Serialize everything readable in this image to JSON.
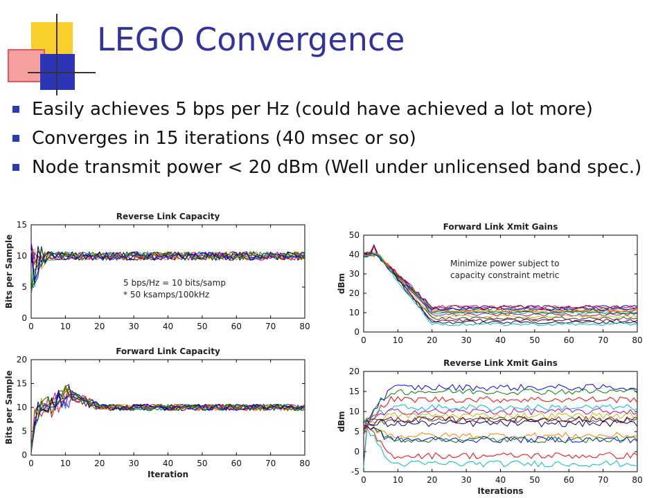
{
  "slide": {
    "title": "LEGO Convergence",
    "bullets": [
      "Easily achieves 5 bps per Hz (could have achieved a lot more)",
      "Converges in 15 iterations (40 msec or so)",
      "Node transmit power < 20 dBm (Well under unlicensed band spec.)"
    ]
  },
  "colors": {
    "title": "#33339c",
    "bullet": "#2c3bb0",
    "logo_yellow": "#f9cf2b",
    "logo_red": "#f26a6a",
    "logo_blue": "#2b35b6",
    "series": [
      "#0000ff",
      "#008000",
      "#ff0000",
      "#00bfbf",
      "#bf00bf",
      "#bfbf00",
      "#404040",
      "#7f0000",
      "#00007f",
      "#ff7f00"
    ]
  },
  "chart_data": [
    {
      "type": "line",
      "title": "Reverse Link Capacity",
      "xlabel": "",
      "ylabel": "Bits per Sample",
      "xlim": [
        0,
        80
      ],
      "ylim": [
        0,
        15
      ],
      "xticks": [
        0,
        10,
        20,
        30,
        40,
        50,
        60,
        70,
        80
      ],
      "yticks": [
        0,
        5,
        10,
        15
      ],
      "annotation": [
        "5 bps/Hz = 10 bits/samp",
        "* 50 ksamps/100kHz"
      ],
      "series_count": 12,
      "start_range": [
        4,
        12
      ],
      "steady_value": 10,
      "converge_iter": 5,
      "noise": 0.7
    },
    {
      "type": "line",
      "title": "Forward Link Capacity",
      "xlabel": "Iteration",
      "ylabel": "Bits per Sample",
      "xlim": [
        0,
        80
      ],
      "ylim": [
        0,
        20
      ],
      "xticks": [
        0,
        10,
        20,
        30,
        40,
        50,
        60,
        70,
        80
      ],
      "yticks": [
        0,
        5,
        10,
        15,
        20
      ],
      "annotation": [],
      "series_count": 12,
      "start_range": [
        0.5,
        2
      ],
      "peak_value": 12.5,
      "steady_value": 10,
      "converge_iter": 20,
      "noise": 0.7
    },
    {
      "type": "line",
      "title": "Forward Link Xmit Gains",
      "xlabel": "",
      "ylabel": "dBm",
      "xlim": [
        0,
        80
      ],
      "ylim": [
        0,
        50
      ],
      "xticks": [
        0,
        10,
        20,
        30,
        40,
        50,
        60,
        70,
        80
      ],
      "yticks": [
        0,
        10,
        20,
        30,
        40,
        50
      ],
      "annotation": [
        "Minimize power subject to",
        "capacity constraint metric"
      ],
      "series_count": 14,
      "start_value": 40,
      "steady_levels": [
        13,
        12,
        11,
        10,
        9,
        8,
        7,
        6,
        5,
        11,
        12,
        10,
        13,
        4
      ],
      "converge_iter": 20,
      "noise": 0.8
    },
    {
      "type": "line",
      "title": "Reverse Link Xmit Gains",
      "xlabel": "Iterations",
      "ylabel": "dBm",
      "xlim": [
        0,
        80
      ],
      "ylim": [
        -5,
        20
      ],
      "xticks": [
        0,
        10,
        20,
        30,
        40,
        50,
        60,
        70,
        80
      ],
      "yticks": [
        -5,
        0,
        5,
        10,
        15,
        20
      ],
      "annotation": [],
      "series_count": 14,
      "start_value": 7,
      "steady_levels": [
        16,
        15,
        13,
        11,
        10,
        9,
        8,
        8,
        7,
        4,
        3,
        3,
        -1,
        -3
      ],
      "converge_iter": 8,
      "noise": 0.8
    }
  ]
}
